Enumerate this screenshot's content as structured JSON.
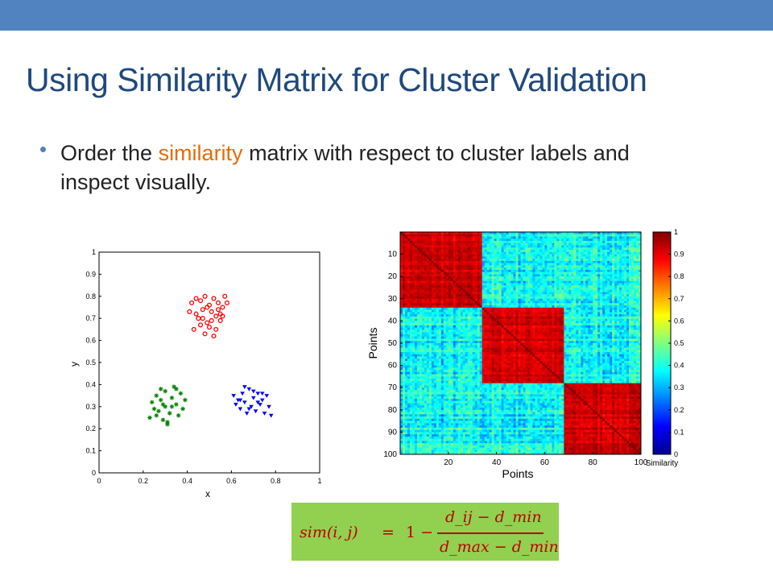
{
  "slide": {
    "title": "Using Similarity Matrix for Cluster Validation",
    "bullet": {
      "before": "Order the ",
      "highlight": "similarity",
      "after": " matrix with respect to cluster labels and inspect visually.",
      "highlight_color": "#e46c0a"
    },
    "colors": {
      "topbar": "#5183c0",
      "title": "#1f497d",
      "formula_bg": "#92d050",
      "formula_text": "#c00000"
    }
  },
  "formula": {
    "lhs": "sim(i, j)",
    "equals": "=",
    "one_minus": "1 −",
    "numerator": "d_ij − d_min",
    "denominator": "d_max − d_min"
  },
  "chart_data": [
    {
      "type": "scatter",
      "xlabel": "x",
      "ylabel": "y",
      "xlim": [
        0,
        1
      ],
      "ylim": [
        0,
        1
      ],
      "xticks": [
        "0",
        "0.2",
        "0.4",
        "0.6",
        "0.8",
        "1"
      ],
      "yticks": [
        "0",
        "0.1",
        "0.2",
        "0.3",
        "0.4",
        "0.5",
        "0.6",
        "0.7",
        "0.8",
        "0.9",
        "1"
      ],
      "series": [
        {
          "marker": "circle",
          "color": "#ff0000",
          "points": [
            [
              0.42,
              0.77
            ],
            [
              0.44,
              0.72
            ],
            [
              0.45,
              0.7
            ],
            [
              0.46,
              0.78
            ],
            [
              0.47,
              0.74
            ],
            [
              0.48,
              0.8
            ],
            [
              0.49,
              0.68
            ],
            [
              0.5,
              0.76
            ],
            [
              0.51,
              0.73
            ],
            [
              0.52,
              0.79
            ],
            [
              0.53,
              0.71
            ],
            [
              0.54,
              0.77
            ],
            [
              0.55,
              0.69
            ],
            [
              0.56,
              0.75
            ],
            [
              0.57,
              0.8
            ],
            [
              0.43,
              0.65
            ],
            [
              0.46,
              0.67
            ],
            [
              0.48,
              0.63
            ],
            [
              0.5,
              0.66
            ],
            [
              0.52,
              0.62
            ],
            [
              0.53,
              0.65
            ],
            [
              0.55,
              0.72
            ],
            [
              0.41,
              0.73
            ],
            [
              0.47,
              0.7
            ],
            [
              0.51,
              0.69
            ],
            [
              0.54,
              0.74
            ],
            [
              0.44,
              0.79
            ],
            [
              0.49,
              0.75
            ],
            [
              0.56,
              0.71
            ],
            [
              0.58,
              0.77
            ]
          ]
        },
        {
          "marker": "star",
          "color": "#008000",
          "points": [
            [
              0.23,
              0.25
            ],
            [
              0.24,
              0.32
            ],
            [
              0.25,
              0.29
            ],
            [
              0.26,
              0.35
            ],
            [
              0.27,
              0.28
            ],
            [
              0.28,
              0.33
            ],
            [
              0.29,
              0.24
            ],
            [
              0.3,
              0.3
            ],
            [
              0.3,
              0.37
            ],
            [
              0.31,
              0.22
            ],
            [
              0.32,
              0.27
            ],
            [
              0.33,
              0.34
            ],
            [
              0.34,
              0.39
            ],
            [
              0.35,
              0.31
            ],
            [
              0.36,
              0.26
            ],
            [
              0.37,
              0.36
            ],
            [
              0.38,
              0.29
            ],
            [
              0.39,
              0.33
            ],
            [
              0.28,
              0.38
            ],
            [
              0.31,
              0.23
            ],
            [
              0.33,
              0.3
            ],
            [
              0.26,
              0.26
            ],
            [
              0.35,
              0.38
            ],
            [
              0.29,
              0.31
            ]
          ]
        },
        {
          "marker": "triangle-down",
          "color": "#0000ff",
          "points": [
            [
              0.61,
              0.35
            ],
            [
              0.62,
              0.31
            ],
            [
              0.63,
              0.33
            ],
            [
              0.64,
              0.29
            ],
            [
              0.65,
              0.36
            ],
            [
              0.66,
              0.32
            ],
            [
              0.67,
              0.27
            ],
            [
              0.68,
              0.38
            ],
            [
              0.69,
              0.3
            ],
            [
              0.7,
              0.34
            ],
            [
              0.71,
              0.28
            ],
            [
              0.72,
              0.36
            ],
            [
              0.73,
              0.31
            ],
            [
              0.74,
              0.33
            ],
            [
              0.75,
              0.27
            ],
            [
              0.76,
              0.35
            ],
            [
              0.77,
              0.3
            ],
            [
              0.78,
              0.26
            ],
            [
              0.66,
              0.39
            ],
            [
              0.7,
              0.37
            ],
            [
              0.74,
              0.36
            ],
            [
              0.64,
              0.33
            ],
            [
              0.72,
              0.32
            ],
            [
              0.68,
              0.29
            ]
          ]
        }
      ]
    },
    {
      "type": "heatmap",
      "xlabel": "Points",
      "ylabel": "Points",
      "xticks": [
        "20",
        "40",
        "60",
        "80",
        "100"
      ],
      "yticks": [
        "10",
        "20",
        "30",
        "40",
        "50",
        "60",
        "70",
        "80",
        "90",
        "100"
      ],
      "size": 100,
      "blocks": [
        [
          1,
          34
        ],
        [
          35,
          68
        ],
        [
          69,
          100
        ]
      ],
      "in_cluster_similarity": [
        0.75,
        1.0
      ],
      "between_cluster_similarity": [
        0.2,
        0.55
      ],
      "colorbar": {
        "label": "Similarity",
        "range": [
          0,
          1
        ],
        "ticks": [
          "0",
          "0.1",
          "0.2",
          "0.3",
          "0.4",
          "0.5",
          "0.6",
          "0.7",
          "0.8",
          "0.9",
          "1"
        ]
      }
    }
  ]
}
